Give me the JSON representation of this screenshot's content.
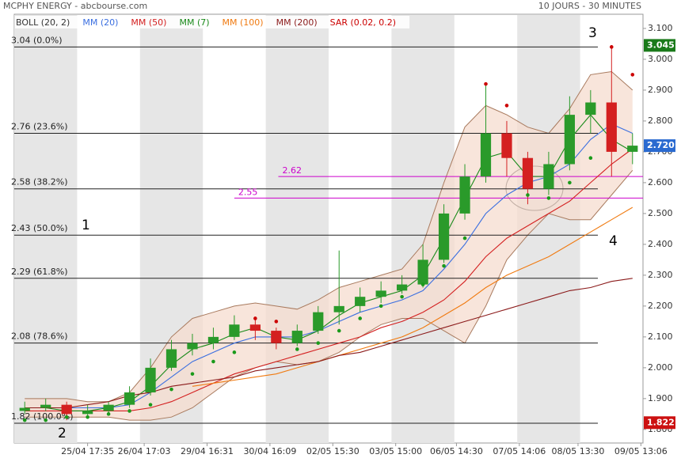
{
  "chart_data": {
    "type": "candlestick",
    "title": "MCPHY ENERGY - abcbourse.com",
    "subtitle": "10 JOURS - 30 MINUTES",
    "xlim": [
      -0.5,
      29.5
    ],
    "xticks": [
      {
        "value": 3,
        "label": "25/04 17:35"
      },
      {
        "value": 5.7,
        "label": "26/04 17:03"
      },
      {
        "value": 8.7,
        "label": "29/04 16:31"
      },
      {
        "value": 11.7,
        "label": "30/04 16:09"
      },
      {
        "value": 14.7,
        "label": "02/05 15:30"
      },
      {
        "value": 17.7,
        "label": "03/05 15:00"
      },
      {
        "value": 20.6,
        "label": "06/05 14:30"
      },
      {
        "value": 23.6,
        "label": "07/05 14:06"
      },
      {
        "value": 26.4,
        "label": "08/05 13:30"
      },
      {
        "value": 29.4,
        "label": "09/05 13:06"
      }
    ],
    "ylim": [
      1.756,
      3.146
    ],
    "yticks": [
      {
        "value": 3.1,
        "label": "3.100"
      },
      {
        "value": 3.0,
        "label": "3.000"
      },
      {
        "value": 2.9,
        "label": "2.900"
      },
      {
        "value": 2.8,
        "label": "2.800"
      },
      {
        "value": 2.7,
        "label": "2.700"
      },
      {
        "value": 2.6,
        "label": "2.600"
      },
      {
        "value": 2.5,
        "label": "2.500"
      },
      {
        "value": 2.4,
        "label": "2.400"
      },
      {
        "value": 2.3,
        "label": "2.300"
      },
      {
        "value": 2.2,
        "label": "2.200"
      },
      {
        "value": 2.1,
        "label": "2.100"
      },
      {
        "value": 2.0,
        "label": "2.000"
      },
      {
        "value": 1.9,
        "label": "1.900"
      },
      {
        "value": 1.8,
        "label": "1.800"
      }
    ],
    "up_color": "#2a9a2a",
    "down_color": "#d42020",
    "ohlc": {
      "open": [
        1.86,
        1.87,
        1.88,
        1.85,
        1.86,
        1.88,
        1.92,
        2.0,
        2.06,
        2.08,
        2.1,
        2.14,
        2.12,
        2.08,
        2.12,
        2.18,
        2.2,
        2.23,
        2.25,
        2.27,
        2.35,
        2.5,
        2.62,
        2.76,
        2.68,
        2.58,
        2.66,
        2.82,
        2.86,
        2.7
      ],
      "high": [
        1.89,
        1.9,
        1.89,
        1.88,
        1.89,
        1.94,
        2.03,
        2.09,
        2.11,
        2.13,
        2.17,
        2.16,
        2.13,
        2.14,
        2.2,
        2.38,
        2.26,
        2.28,
        2.3,
        2.4,
        2.53,
        2.66,
        2.92,
        2.8,
        2.7,
        2.7,
        2.88,
        2.9,
        3.04,
        2.76
      ],
      "low": [
        1.85,
        1.86,
        1.83,
        1.84,
        1.85,
        1.87,
        1.91,
        1.99,
        2.04,
        2.06,
        2.09,
        2.09,
        2.06,
        2.07,
        2.11,
        2.14,
        2.18,
        2.21,
        2.24,
        2.26,
        2.34,
        2.48,
        2.6,
        2.62,
        2.53,
        2.56,
        2.64,
        2.76,
        2.62,
        2.66
      ],
      "close": [
        1.87,
        1.88,
        1.85,
        1.86,
        1.88,
        1.92,
        2.0,
        2.06,
        2.08,
        2.1,
        2.14,
        2.12,
        2.08,
        2.12,
        2.18,
        2.2,
        2.23,
        2.25,
        2.27,
        2.35,
        2.5,
        2.62,
        2.76,
        2.68,
        2.58,
        2.66,
        2.82,
        2.86,
        2.7,
        2.72
      ]
    },
    "bollinger": {
      "name": "BOLL (20, 2)",
      "color": "#a87a5e",
      "fill": "#f5dccf",
      "legend_color": "#333333",
      "upper": [
        1.9,
        1.9,
        1.9,
        1.89,
        1.89,
        1.92,
        2.0,
        2.1,
        2.16,
        2.18,
        2.2,
        2.21,
        2.2,
        2.19,
        2.22,
        2.26,
        2.28,
        2.3,
        2.32,
        2.4,
        2.6,
        2.78,
        2.85,
        2.82,
        2.78,
        2.76,
        2.84,
        2.95,
        2.96,
        2.9
      ],
      "lower": [
        1.84,
        1.84,
        1.84,
        1.84,
        1.84,
        1.83,
        1.83,
        1.84,
        1.87,
        1.92,
        1.97,
        2.0,
        2.02,
        2.01,
        2.02,
        2.05,
        2.1,
        2.14,
        2.16,
        2.16,
        2.12,
        2.08,
        2.2,
        2.35,
        2.43,
        2.5,
        2.48,
        2.48,
        2.56,
        2.64
      ]
    },
    "series": [
      {
        "name": "MM (20)",
        "color": "#3b6fe0",
        "values": [
          1.87,
          1.87,
          1.87,
          1.87,
          1.87,
          1.88,
          1.92,
          1.97,
          2.02,
          2.05,
          2.08,
          2.1,
          2.1,
          2.1,
          2.12,
          2.15,
          2.18,
          2.2,
          2.22,
          2.25,
          2.32,
          2.4,
          2.5,
          2.56,
          2.6,
          2.62,
          2.66,
          2.74,
          2.79,
          2.76
        ]
      },
      {
        "name": "MM (50)",
        "color": "#d42020",
        "values": [
          1.86,
          1.86,
          1.86,
          1.86,
          1.86,
          1.86,
          1.87,
          1.89,
          1.92,
          1.95,
          1.98,
          2.0,
          2.02,
          2.04,
          2.06,
          2.08,
          2.1,
          2.13,
          2.15,
          2.18,
          2.22,
          2.28,
          2.36,
          2.42,
          2.46,
          2.5,
          2.54,
          2.6,
          2.66,
          2.71
        ]
      },
      {
        "name": "MM (7)",
        "color": "#1a8a1a",
        "values": [
          1.87,
          1.87,
          1.86,
          1.86,
          1.87,
          1.89,
          1.94,
          2.01,
          2.06,
          2.08,
          2.11,
          2.13,
          2.1,
          2.09,
          2.12,
          2.17,
          2.21,
          2.23,
          2.25,
          2.3,
          2.42,
          2.55,
          2.68,
          2.7,
          2.62,
          2.62,
          2.74,
          2.82,
          2.74,
          2.7
        ]
      },
      {
        "name": "MM (100)",
        "color": "#f07a10",
        "values": [
          null,
          null,
          null,
          null,
          null,
          null,
          null,
          null,
          1.94,
          1.95,
          1.96,
          1.97,
          1.98,
          2.0,
          2.02,
          2.04,
          2.06,
          2.08,
          2.1,
          2.13,
          2.17,
          2.21,
          2.26,
          2.3,
          2.33,
          2.36,
          2.4,
          2.44,
          2.48,
          2.52
        ]
      },
      {
        "name": "MM (200)",
        "color": "#8b1a1a",
        "values": [
          1.87,
          1.87,
          1.87,
          1.88,
          1.89,
          1.91,
          1.92,
          1.94,
          1.95,
          1.96,
          1.97,
          1.99,
          2.0,
          2.01,
          2.02,
          2.04,
          2.05,
          2.07,
          2.09,
          2.11,
          2.13,
          2.15,
          2.17,
          2.19,
          2.21,
          2.23,
          2.25,
          2.26,
          2.28,
          2.29
        ]
      }
    ],
    "sar": {
      "name": "SAR (0.02, 0.2)",
      "color": "#cc0000",
      "color_below": "#1a9a1a",
      "values": [
        1.83,
        1.83,
        1.84,
        1.84,
        1.85,
        1.86,
        1.88,
        1.93,
        1.98,
        2.02,
        2.05,
        2.16,
        2.15,
        2.06,
        2.08,
        2.12,
        2.16,
        2.2,
        2.23,
        2.27,
        2.33,
        2.42,
        2.92,
        2.85,
        2.56,
        2.55,
        2.6,
        2.68,
        3.04,
        2.95
      ]
    },
    "fibonacci": [
      {
        "value": 3.04,
        "label": "3.04  (0.0%)"
      },
      {
        "value": 2.76,
        "label": "2.76  (23.6%)"
      },
      {
        "value": 2.58,
        "label": "2.58  (38.2%)"
      },
      {
        "value": 2.43,
        "label": "2.43  (50.0%)"
      },
      {
        "value": 2.29,
        "label": "2.29  (61.8%)"
      },
      {
        "value": 2.08,
        "label": "2.08  (78.6%)"
      },
      {
        "value": 1.82,
        "label": "1.82  (100.0%)"
      }
    ],
    "levels": [
      {
        "value": 2.62,
        "label": "2.62",
        "xstart": 12.1,
        "color": "#cc00cc"
      },
      {
        "value": 2.55,
        "label": "2.55",
        "xstart": 10.0,
        "color": "#cc00cc"
      }
    ],
    "price_markers": [
      {
        "value": 3.045,
        "label": "3.045",
        "color": "#1a7a1a"
      },
      {
        "value": 2.72,
        "label": "2.720",
        "color": "#2a6ad0"
      },
      {
        "value": 1.822,
        "label": "1.822",
        "color": "#cc1111"
      }
    ],
    "annotations": [
      "1",
      "2",
      "3",
      "4"
    ]
  }
}
